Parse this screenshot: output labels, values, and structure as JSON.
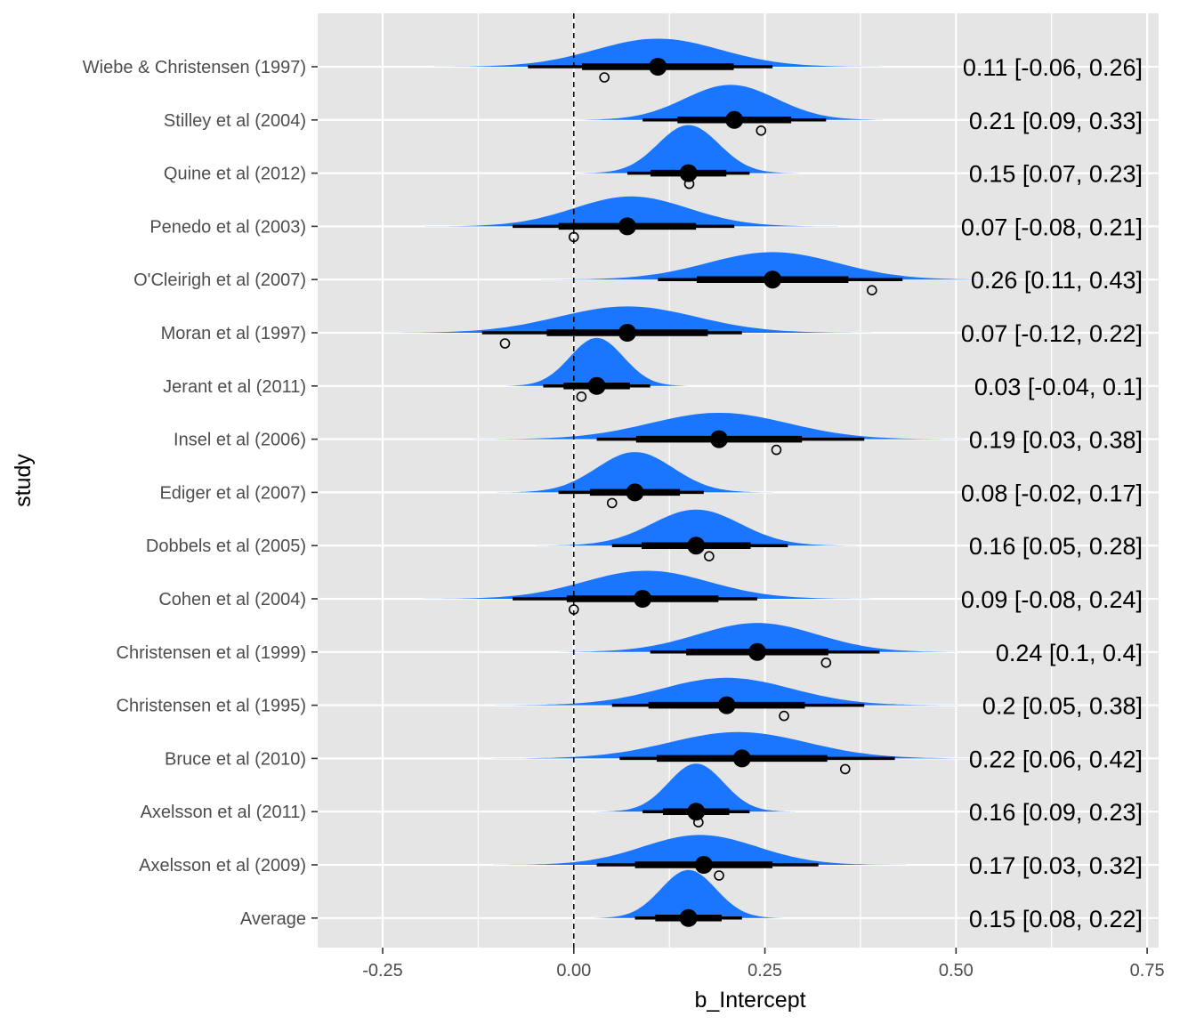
{
  "chart_data": {
    "type": "forest",
    "xlabel": "b_Intercept",
    "ylabel": "study",
    "xlim": [
      -0.335,
      0.765
    ],
    "x_ticks": [
      {
        "value": -0.25,
        "label": "-0.25"
      },
      {
        "value": 0.0,
        "label": "0.00"
      },
      {
        "value": 0.25,
        "label": "0.25"
      },
      {
        "value": 0.5,
        "label": "0.50"
      },
      {
        "value": 0.75,
        "label": "0.75"
      }
    ],
    "reference_line": 0,
    "grid": true,
    "colors": {
      "panel": "#e5e5e5",
      "grid_major": "#ffffff",
      "density": "#1a75ff",
      "interval": "#000000"
    },
    "studies": [
      {
        "name": "Wiebe & Christensen (1997)",
        "estimate": 0.11,
        "lower": -0.06,
        "upper": 0.26,
        "mean": 0.11,
        "sd": 0.082,
        "observed": 0.04,
        "label": "0.11 [-0.06, 0.26]"
      },
      {
        "name": "Stilley et al  (2004)",
        "estimate": 0.21,
        "lower": 0.09,
        "upper": 0.33,
        "mean": 0.205,
        "sd": 0.06,
        "observed": 0.245,
        "label": "0.21 [0.09, 0.33]"
      },
      {
        "name": "Quine et al  (2012)",
        "estimate": 0.15,
        "lower": 0.07,
        "upper": 0.23,
        "mean": 0.15,
        "sd": 0.04,
        "observed": 0.151,
        "label": "0.15 [0.07, 0.23]"
      },
      {
        "name": "Penedo et al  (2003)",
        "estimate": 0.07,
        "lower": -0.08,
        "upper": 0.21,
        "mean": 0.075,
        "sd": 0.075,
        "observed": 0.0,
        "label": "0.07 [-0.08, 0.21]"
      },
      {
        "name": "O'Cleirigh et al  (2007)",
        "estimate": 0.26,
        "lower": 0.11,
        "upper": 0.43,
        "mean": 0.26,
        "sd": 0.085,
        "observed": 0.39,
        "label": "0.26 [0.11, 0.43]"
      },
      {
        "name": "Moran et al  (1997)",
        "estimate": 0.07,
        "lower": -0.12,
        "upper": 0.22,
        "mean": 0.07,
        "sd": 0.09,
        "observed": -0.09,
        "label": "0.07 [-0.12, 0.22]"
      },
      {
        "name": "Jerant et al  (2011)",
        "estimate": 0.03,
        "lower": -0.04,
        "upper": 0.1,
        "mean": 0.03,
        "sd": 0.035,
        "observed": 0.01,
        "label": "0.03 [-0.04, 0.1]"
      },
      {
        "name": "Insel et al  (2006)",
        "estimate": 0.19,
        "lower": 0.03,
        "upper": 0.38,
        "mean": 0.19,
        "sd": 0.09,
        "observed": 0.265,
        "label": "0.19 [0.03, 0.38]"
      },
      {
        "name": "Ediger et al  (2007)",
        "estimate": 0.08,
        "lower": -0.02,
        "upper": 0.17,
        "mean": 0.08,
        "sd": 0.05,
        "observed": 0.05,
        "label": "0.08 [-0.02, 0.17]"
      },
      {
        "name": "Dobbels et al  (2005)",
        "estimate": 0.16,
        "lower": 0.05,
        "upper": 0.28,
        "mean": 0.16,
        "sd": 0.058,
        "observed": 0.177,
        "label": "0.16 [0.05, 0.28]"
      },
      {
        "name": "Cohen et al  (2004)",
        "estimate": 0.09,
        "lower": -0.08,
        "upper": 0.24,
        "mean": 0.095,
        "sd": 0.082,
        "observed": 0.0,
        "label": "0.09 [-0.08, 0.24]"
      },
      {
        "name": "Christensen et al  (1999)",
        "estimate": 0.24,
        "lower": 0.1,
        "upper": 0.4,
        "mean": 0.24,
        "sd": 0.078,
        "observed": 0.33,
        "label": "0.24 [0.1, 0.4]"
      },
      {
        "name": "Christensen et al  (1995)",
        "estimate": 0.2,
        "lower": 0.05,
        "upper": 0.38,
        "mean": 0.2,
        "sd": 0.085,
        "observed": 0.275,
        "label": "0.2 [0.05, 0.38]"
      },
      {
        "name": "Bruce et al  (2010)",
        "estimate": 0.22,
        "lower": 0.06,
        "upper": 0.42,
        "mean": 0.215,
        "sd": 0.09,
        "observed": 0.355,
        "label": "0.22 [0.06, 0.42]"
      },
      {
        "name": "Axelsson et al  (2011)",
        "estimate": 0.16,
        "lower": 0.09,
        "upper": 0.23,
        "mean": 0.16,
        "sd": 0.036,
        "observed": 0.163,
        "label": "0.16 [0.09, 0.23]"
      },
      {
        "name": "Axelsson et al  (2009)",
        "estimate": 0.17,
        "lower": 0.03,
        "upper": 0.32,
        "mean": 0.165,
        "sd": 0.075,
        "observed": 0.19,
        "label": "0.17 [0.03, 0.32]"
      },
      {
        "name": "Average",
        "estimate": 0.15,
        "lower": 0.08,
        "upper": 0.22,
        "mean": 0.15,
        "sd": 0.036,
        "observed": null,
        "label": "0.15 [0.08, 0.22]"
      }
    ]
  }
}
